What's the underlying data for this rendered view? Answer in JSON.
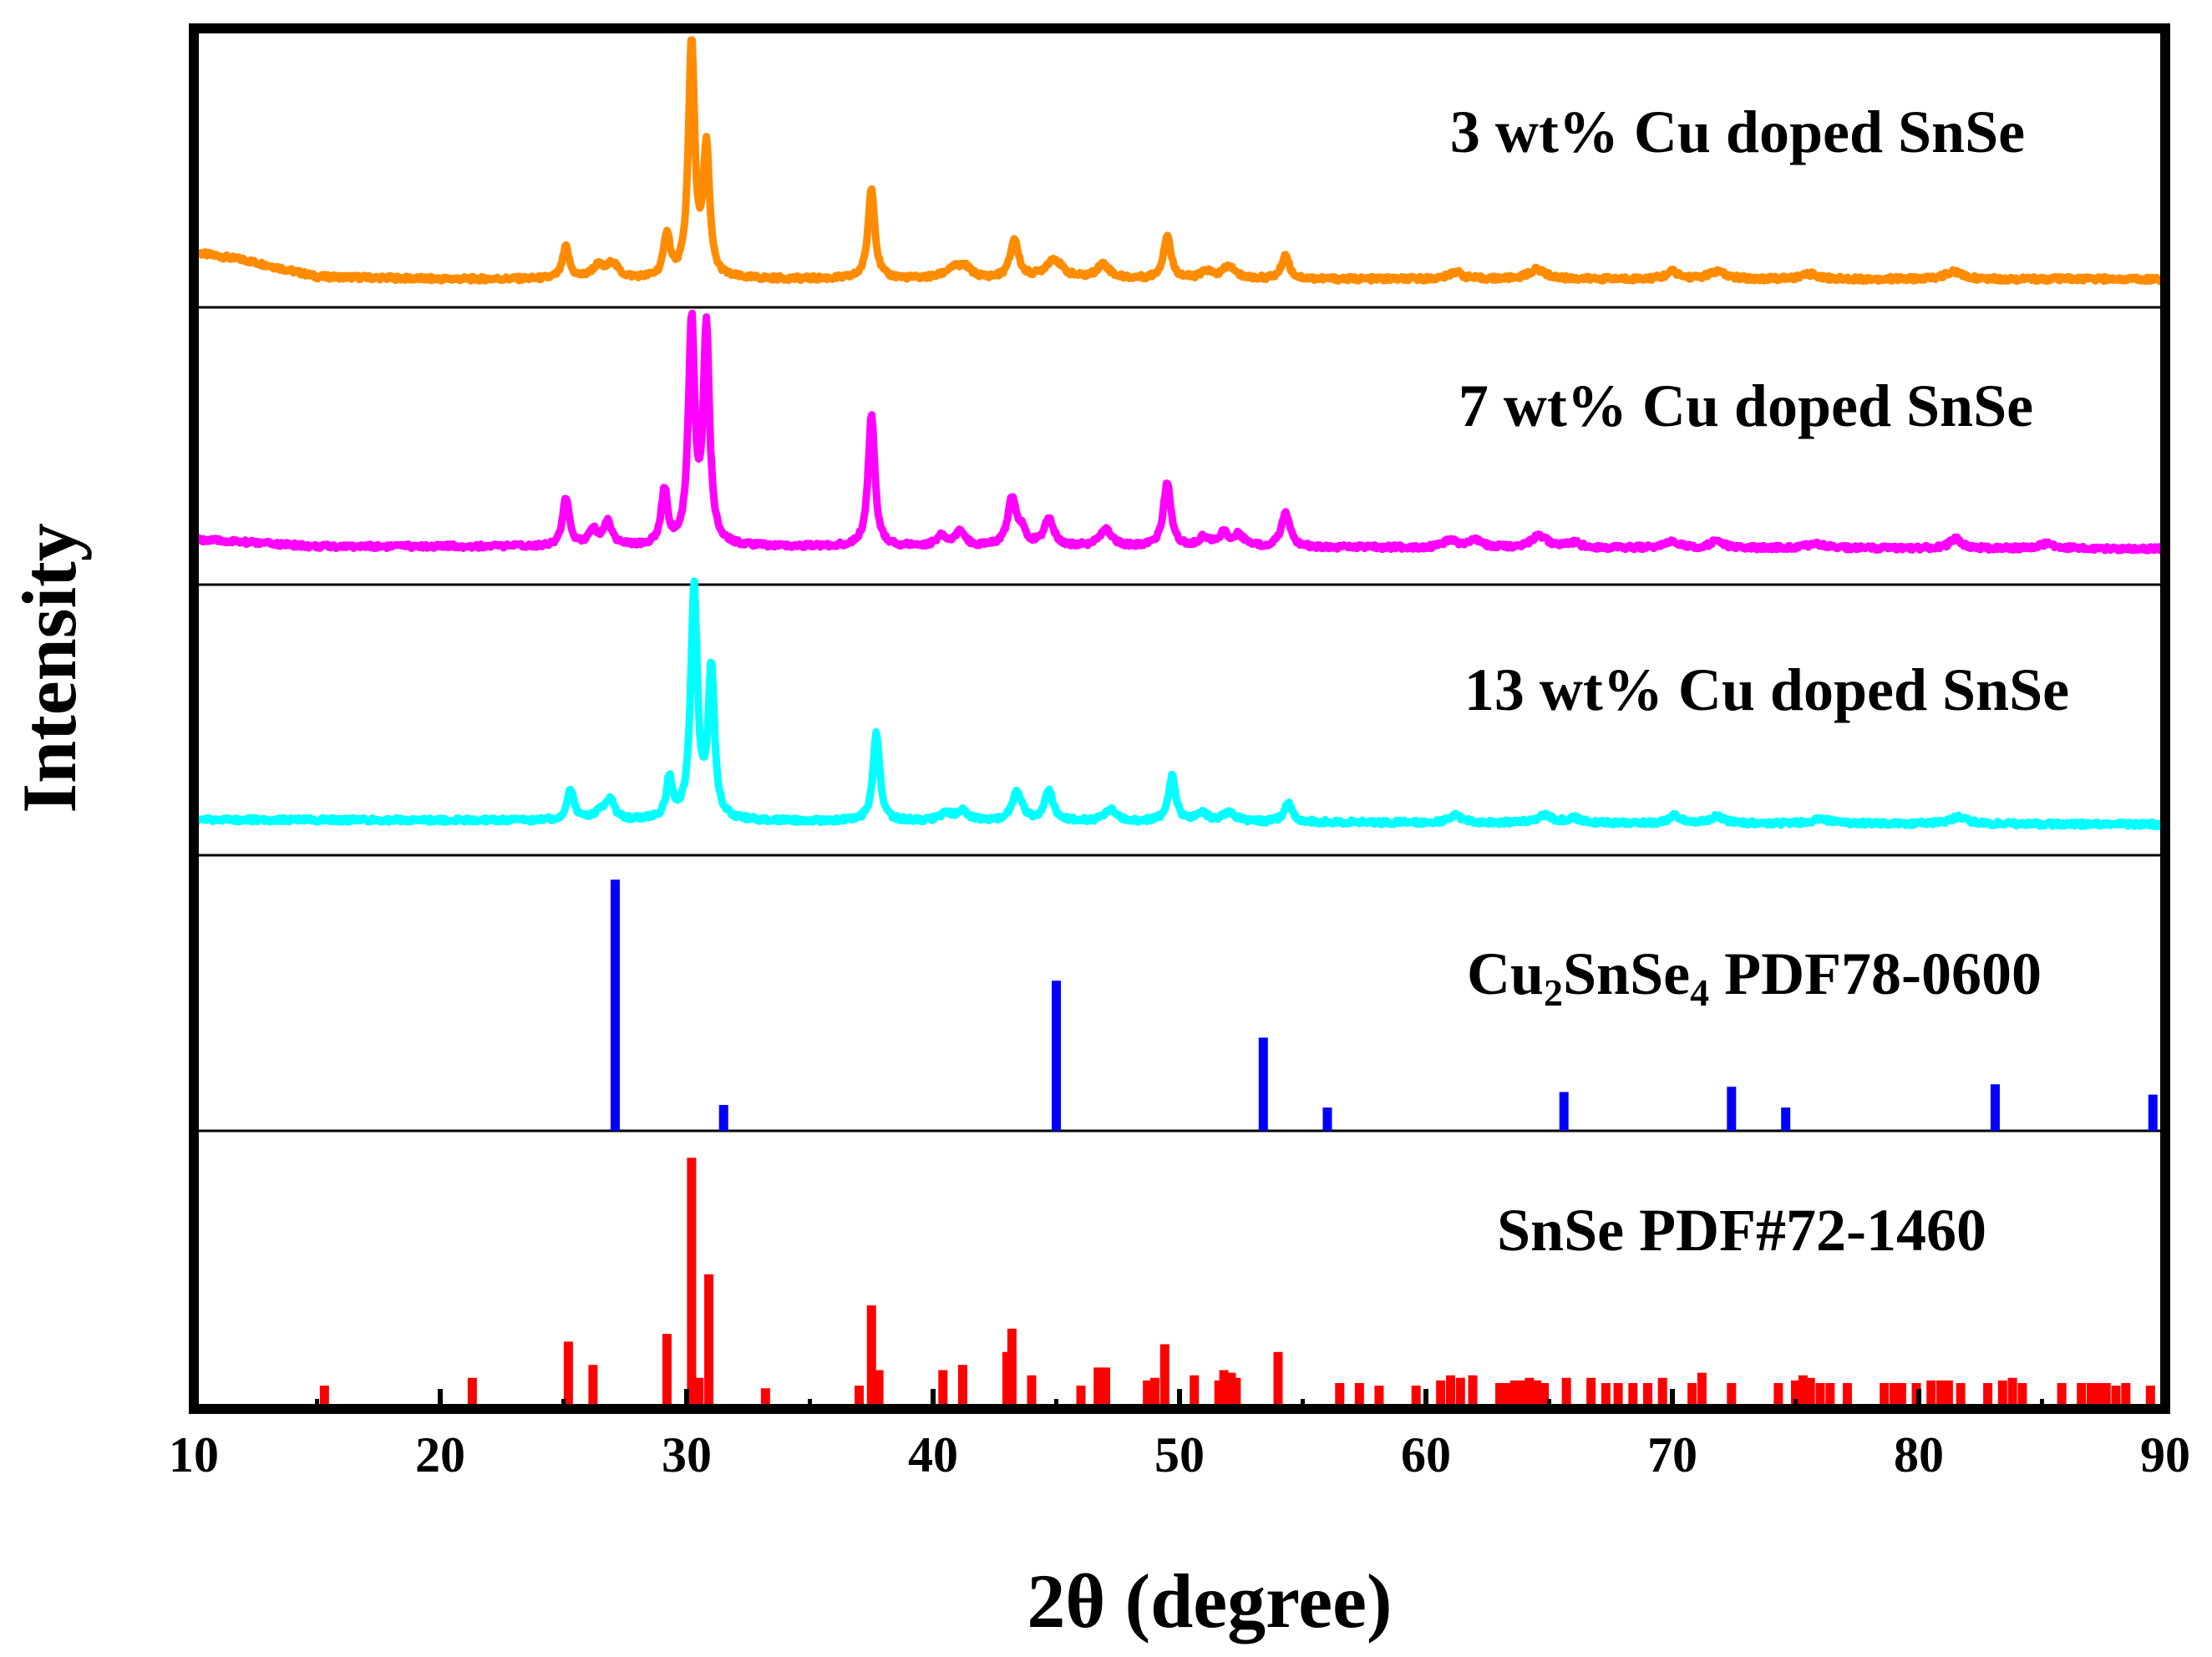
{
  "chart_data": {
    "type": "line",
    "title": "",
    "xlabel": "2θ (degree)",
    "ylabel": "Intensity",
    "xlim": [
      10,
      90
    ],
    "xticks": [
      10,
      20,
      30,
      40,
      50,
      60,
      70,
      80,
      90
    ],
    "grid": false,
    "legend": "none",
    "panels": [
      {
        "name": "3wt",
        "label": "3 wt% Cu doped SnSe",
        "color": "#ff8c00",
        "kind": "pattern",
        "baseline": [
          [
            10,
            0.13
          ],
          [
            12,
            0.1
          ],
          [
            15,
            0.03
          ],
          [
            20,
            0.02
          ],
          [
            30,
            0.02
          ],
          [
            40,
            0.02
          ],
          [
            50,
            0.02
          ],
          [
            60,
            0.02
          ],
          [
            70,
            0.02
          ],
          [
            80,
            0.02
          ],
          [
            90,
            0.02
          ]
        ],
        "peaks": [
          [
            25.1,
            0.13,
            0.16
          ],
          [
            26.4,
            0.05,
            0.3
          ],
          [
            27.0,
            0.06,
            0.25
          ],
          [
            29.2,
            0.18,
            0.15
          ],
          [
            30.2,
            0.97,
            0.15
          ],
          [
            30.8,
            0.53,
            0.15
          ],
          [
            37.5,
            0.38,
            0.16
          ],
          [
            40.8,
            0.04,
            0.4
          ],
          [
            41.3,
            0.04,
            0.3
          ],
          [
            43.3,
            0.16,
            0.2
          ],
          [
            44.9,
            0.08,
            0.4
          ],
          [
            46.9,
            0.06,
            0.3
          ],
          [
            49.5,
            0.18,
            0.18
          ],
          [
            51.1,
            0.03,
            0.25
          ],
          [
            52.0,
            0.05,
            0.3
          ],
          [
            54.3,
            0.1,
            0.18
          ],
          [
            61.2,
            0.03,
            0.3
          ],
          [
            64.5,
            0.04,
            0.4
          ],
          [
            70.0,
            0.03,
            0.3
          ],
          [
            71.8,
            0.03,
            0.4
          ],
          [
            75.6,
            0.02,
            0.4
          ],
          [
            81.4,
            0.03,
            0.4
          ]
        ]
      },
      {
        "name": "7wt",
        "label": "7 wt% Cu doped SnSe",
        "color": "#ff00ff",
        "kind": "pattern",
        "baseline": [
          [
            10,
            0.05
          ],
          [
            15,
            0.02
          ],
          [
            30,
            0.02
          ],
          [
            90,
            0.01
          ]
        ],
        "peaks": [
          [
            25.1,
            0.2,
            0.16
          ],
          [
            26.2,
            0.07,
            0.2
          ],
          [
            26.8,
            0.1,
            0.2
          ],
          [
            29.1,
            0.23,
            0.15
          ],
          [
            30.2,
            0.93,
            0.15
          ],
          [
            30.8,
            0.9,
            0.15
          ],
          [
            37.5,
            0.55,
            0.16
          ],
          [
            40.3,
            0.04,
            0.25
          ],
          [
            41.1,
            0.06,
            0.25
          ],
          [
            43.2,
            0.2,
            0.2
          ],
          [
            43.6,
            0.06,
            0.2
          ],
          [
            44.7,
            0.11,
            0.25
          ],
          [
            47.0,
            0.07,
            0.3
          ],
          [
            49.5,
            0.27,
            0.18
          ],
          [
            51.0,
            0.04,
            0.25
          ],
          [
            51.8,
            0.06,
            0.2
          ],
          [
            52.4,
            0.05,
            0.25
          ],
          [
            54.3,
            0.15,
            0.2
          ],
          [
            61.0,
            0.03,
            0.3
          ],
          [
            62.0,
            0.03,
            0.3
          ],
          [
            64.6,
            0.05,
            0.4
          ],
          [
            66.0,
            0.02,
            0.3
          ],
          [
            70.0,
            0.03,
            0.3
          ],
          [
            71.8,
            0.03,
            0.3
          ],
          [
            75.8,
            0.02,
            0.4
          ],
          [
            81.5,
            0.04,
            0.3
          ],
          [
            85.2,
            0.02,
            0.4
          ]
        ]
      },
      {
        "name": "13wt",
        "label": "13 wt% Cu doped SnSe",
        "color": "#00ffff",
        "kind": "pattern",
        "baseline": [
          [
            10,
            0.03
          ],
          [
            90,
            0.01
          ]
        ],
        "peaks": [
          [
            25.3,
            0.13,
            0.16
          ],
          [
            26.5,
            0.04,
            0.25
          ],
          [
            26.9,
            0.08,
            0.2
          ],
          [
            29.3,
            0.17,
            0.15
          ],
          [
            30.3,
            0.97,
            0.16
          ],
          [
            31.0,
            0.63,
            0.15
          ],
          [
            37.7,
            0.37,
            0.16
          ],
          [
            40.5,
            0.03,
            0.3
          ],
          [
            41.2,
            0.04,
            0.3
          ],
          [
            43.4,
            0.12,
            0.25
          ],
          [
            44.7,
            0.13,
            0.2
          ],
          [
            47.2,
            0.05,
            0.3
          ],
          [
            49.7,
            0.19,
            0.18
          ],
          [
            50.9,
            0.04,
            0.25
          ],
          [
            52.0,
            0.04,
            0.3
          ],
          [
            54.4,
            0.08,
            0.2
          ],
          [
            61.2,
            0.03,
            0.3
          ],
          [
            64.8,
            0.03,
            0.4
          ],
          [
            66.0,
            0.02,
            0.3
          ],
          [
            70.1,
            0.03,
            0.3
          ],
          [
            71.8,
            0.03,
            0.3
          ],
          [
            76.0,
            0.02,
            0.4
          ],
          [
            81.6,
            0.03,
            0.4
          ]
        ]
      },
      {
        "name": "cu2snse4",
        "label_main": "Cu",
        "label_sub1": "2",
        "label_mid": "SnSe",
        "label_sub2": "4",
        "label_tail": " PDF78-0600",
        "color": "#0000ff",
        "kind": "sticks",
        "sticks": [
          [
            27.1,
            0.97
          ],
          [
            31.5,
            0.1
          ],
          [
            45.0,
            0.58
          ],
          [
            53.4,
            0.36
          ],
          [
            56.0,
            0.09
          ],
          [
            65.6,
            0.15
          ],
          [
            72.4,
            0.17
          ],
          [
            74.6,
            0.09
          ],
          [
            83.1,
            0.18
          ],
          [
            89.5,
            0.14
          ]
        ]
      },
      {
        "name": "snse",
        "label": "SnSe PDF#72-1460",
        "color": "#ff0000",
        "kind": "sticks",
        "sticks": [
          [
            15.3,
            0.09
          ],
          [
            21.3,
            0.12
          ],
          [
            25.2,
            0.26
          ],
          [
            26.2,
            0.17
          ],
          [
            29.2,
            0.29
          ],
          [
            30.2,
            0.97
          ],
          [
            30.5,
            0.12
          ],
          [
            30.9,
            0.52
          ],
          [
            33.2,
            0.08
          ],
          [
            37.0,
            0.09
          ],
          [
            37.5,
            0.4
          ],
          [
            37.8,
            0.15
          ],
          [
            40.4,
            0.15
          ],
          [
            41.2,
            0.17
          ],
          [
            43.0,
            0.22
          ],
          [
            43.2,
            0.31
          ],
          [
            44.0,
            0.13
          ],
          [
            46.0,
            0.09
          ],
          [
            46.7,
            0.16
          ],
          [
            47.0,
            0.16
          ],
          [
            48.7,
            0.11
          ],
          [
            49.0,
            0.12
          ],
          [
            49.4,
            0.25
          ],
          [
            50.6,
            0.13
          ],
          [
            51.6,
            0.11
          ],
          [
            51.8,
            0.15
          ],
          [
            52.1,
            0.14
          ],
          [
            52.3,
            0.12
          ],
          [
            54.0,
            0.22
          ],
          [
            56.5,
            0.1
          ],
          [
            57.3,
            0.1
          ],
          [
            58.1,
            0.09
          ],
          [
            59.6,
            0.09
          ],
          [
            60.6,
            0.11
          ],
          [
            61.0,
            0.13
          ],
          [
            61.4,
            0.12
          ],
          [
            61.9,
            0.13
          ],
          [
            63.0,
            0.1
          ],
          [
            63.3,
            0.1
          ],
          [
            63.6,
            0.11
          ],
          [
            63.9,
            0.11
          ],
          [
            64.2,
            0.12
          ],
          [
            64.5,
            0.11
          ],
          [
            64.8,
            0.1
          ],
          [
            65.7,
            0.12
          ],
          [
            66.7,
            0.12
          ],
          [
            67.3,
            0.1
          ],
          [
            67.8,
            0.1
          ],
          [
            68.4,
            0.1
          ],
          [
            69.0,
            0.1
          ],
          [
            69.6,
            0.12
          ],
          [
            70.8,
            0.1
          ],
          [
            71.2,
            0.14
          ],
          [
            72.4,
            0.1
          ],
          [
            74.3,
            0.1
          ],
          [
            75.0,
            0.11
          ],
          [
            75.3,
            0.13
          ],
          [
            75.6,
            0.12
          ],
          [
            76.0,
            0.1
          ],
          [
            76.4,
            0.1
          ],
          [
            77.1,
            0.1
          ],
          [
            78.6,
            0.1
          ],
          [
            79.0,
            0.1
          ],
          [
            79.3,
            0.1
          ],
          [
            79.9,
            0.1
          ],
          [
            80.5,
            0.11
          ],
          [
            80.9,
            0.11
          ],
          [
            81.2,
            0.11
          ],
          [
            81.7,
            0.1
          ],
          [
            82.8,
            0.1
          ],
          [
            83.4,
            0.11
          ],
          [
            83.8,
            0.12
          ],
          [
            84.2,
            0.1
          ],
          [
            85.8,
            0.1
          ],
          [
            86.6,
            0.1
          ],
          [
            87.0,
            0.1
          ],
          [
            87.3,
            0.1
          ],
          [
            87.6,
            0.1
          ],
          [
            88.0,
            0.09
          ],
          [
            88.4,
            0.1
          ],
          [
            89.4,
            0.09
          ]
        ]
      }
    ]
  }
}
